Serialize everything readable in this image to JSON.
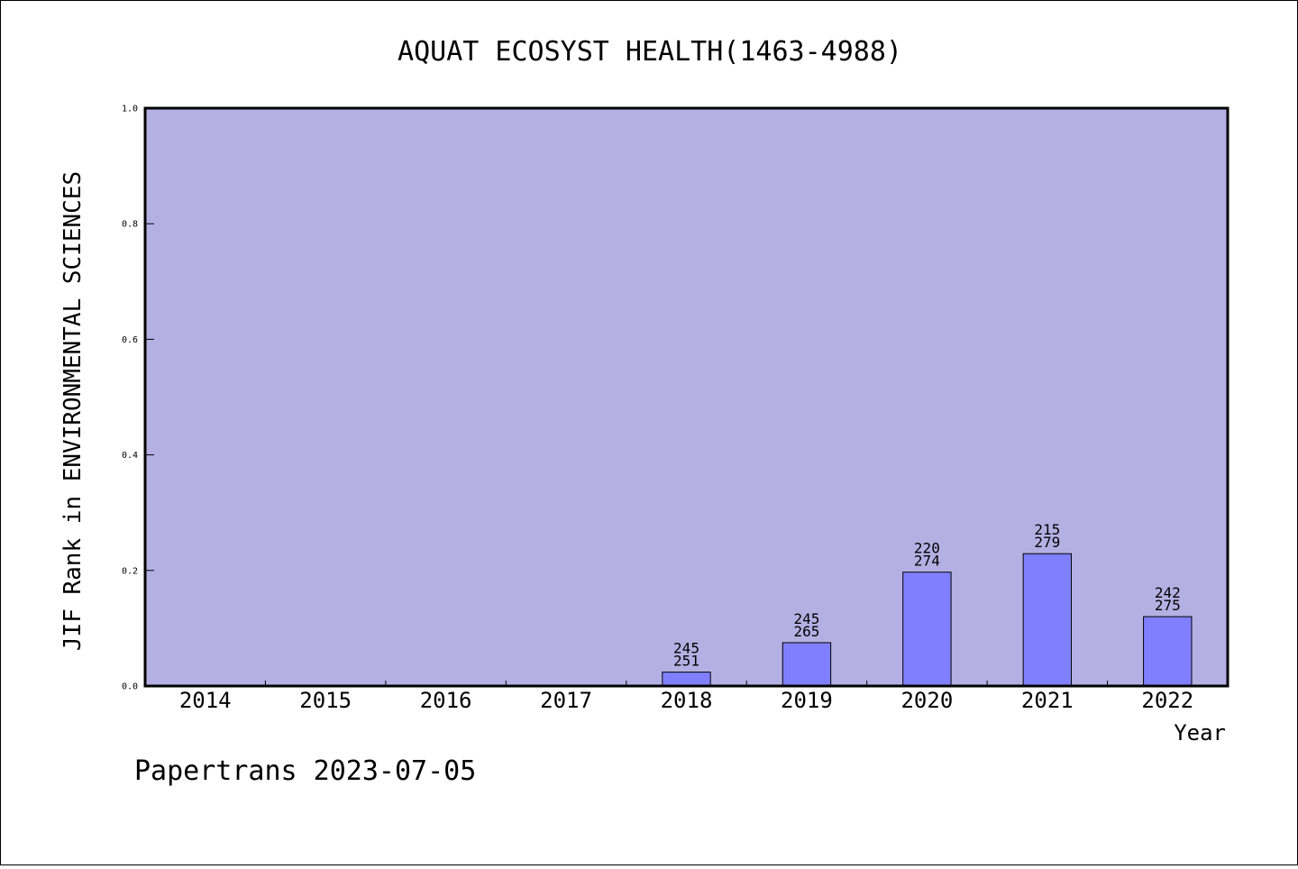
{
  "chart_data": {
    "type": "bar",
    "title": "AQUAT ECOSYST HEALTH(1463-4988)",
    "xlabel": "Year",
    "ylabel": "JIF Rank in ENVIRONMENTAL SCIENCES",
    "ylim": [
      0,
      1.0
    ],
    "yticks": [
      "0.0",
      "0.2",
      "0.4",
      "0.6",
      "0.8",
      "1.0"
    ],
    "categories": [
      "2014",
      "2015",
      "2016",
      "2017",
      "2018",
      "2019",
      "2020",
      "2021",
      "2022"
    ],
    "values": [
      null,
      null,
      null,
      null,
      0.024,
      0.075,
      0.197,
      0.229,
      0.12
    ],
    "labels_rank": [
      null,
      null,
      null,
      null,
      "245",
      "245",
      "220",
      "215",
      "242"
    ],
    "labels_total": [
      null,
      null,
      null,
      null,
      "251",
      "265",
      "274",
      "279",
      "275"
    ],
    "grid": false,
    "legend": "none"
  },
  "colors": {
    "plot_background": "#b5b0e3",
    "bar_fill": "#8080ff",
    "bar_stroke": "#000000",
    "axis": "#000000"
  },
  "footer": {
    "text": "Papertrans 2023-07-05"
  }
}
